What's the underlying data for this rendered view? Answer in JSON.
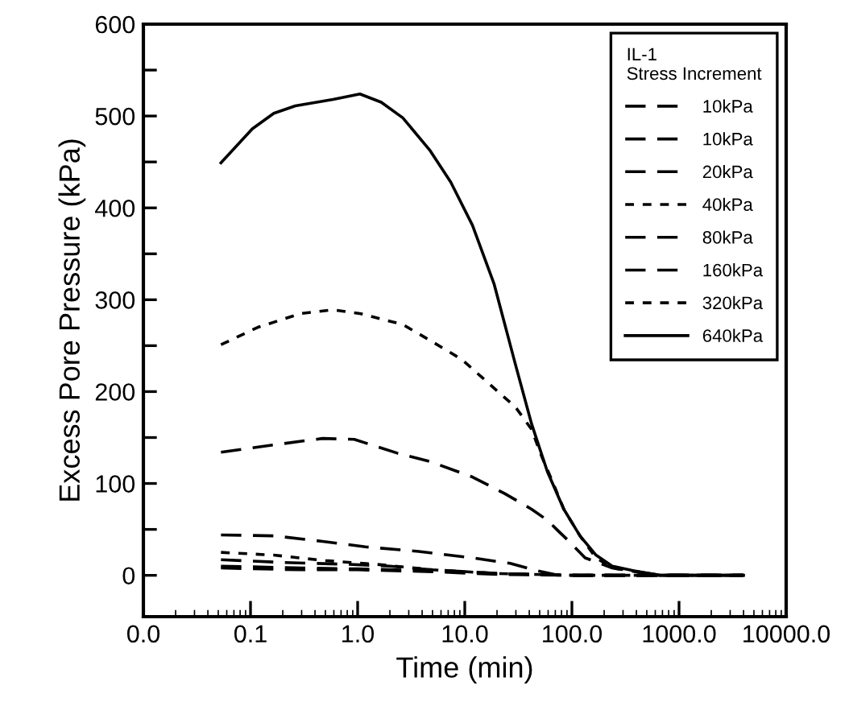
{
  "chart_data": {
    "type": "line",
    "xlabel": "Time (min)",
    "ylabel": "Excess Pore Pressure (kPa)",
    "legend_title": "IL-1\nStress Increment",
    "log": "x",
    "xlim": [
      0.01,
      10000
    ],
    "xticks": [
      {
        "value": 0.01,
        "label": "0.0"
      },
      0.1,
      {
        "value": 1,
        "label": "1.0"
      },
      {
        "value": 10,
        "label": "10.0"
      },
      {
        "value": 100,
        "label": "100.0"
      },
      {
        "value": 1000,
        "label": "1000.0"
      },
      {
        "value": 10000,
        "label": "10000.0"
      }
    ],
    "ylim": [
      -45,
      600
    ],
    "yticks": [
      0,
      {
        "value": 50,
        "label": null
      },
      100,
      {
        "value": 150,
        "label": null
      },
      200,
      {
        "value": 250,
        "label": null
      },
      300,
      {
        "value": 350,
        "label": null
      },
      400,
      {
        "value": 450,
        "label": null
      },
      500,
      {
        "value": 550,
        "label": null
      },
      600
    ],
    "grid": false,
    "legend": "top right",
    "series": [
      {
        "name": "10kPa",
        "color": "#000000",
        "line_style": "dashed",
        "x": [
          0.053,
          0.3,
          1,
          5,
          20,
          100,
          4000
        ],
        "values": [
          10,
          8,
          7,
          5,
          2,
          0,
          0
        ]
      },
      {
        "name": "10kPa",
        "color": "#000000",
        "line_style": "dashed",
        "x": [
          0.053,
          0.3,
          1,
          5,
          20,
          100,
          4000
        ],
        "values": [
          8,
          6,
          6,
          4,
          1,
          0,
          0
        ]
      },
      {
        "name": "20kPa",
        "color": "#000000",
        "line_style": "dashed",
        "x": [
          0.053,
          0.2,
          0.8,
          2,
          5,
          20,
          100,
          4000
        ],
        "values": [
          17,
          14,
          12,
          10,
          6,
          2,
          0,
          0
        ]
      },
      {
        "name": "40kPa",
        "color": "#000000",
        "line_style": "dotted",
        "x": [
          0.053,
          0.165,
          0.5,
          1.5,
          5,
          20,
          100,
          4000
        ],
        "values": [
          25,
          22,
          16,
          12,
          6,
          2,
          0,
          0
        ]
      },
      {
        "name": "80kPa",
        "color": "#000000",
        "line_style": "dashed",
        "x": [
          0.053,
          0.165,
          0.47,
          1.18,
          3.73,
          11.8,
          26.5,
          47,
          75,
          4000
        ],
        "values": [
          44,
          43,
          37,
          31,
          26,
          19,
          13,
          5,
          0,
          0
        ]
      },
      {
        "name": "160kPa",
        "color": "#000000",
        "line_style": "dashed",
        "x": [
          0.053,
          0.165,
          0.47,
          0.93,
          2.35,
          4.7,
          11.8,
          23.6,
          42,
          59,
          75,
          94,
          133,
          238,
          670,
          4000
        ],
        "values": [
          134,
          142,
          149,
          148,
          133,
          124,
          107,
          89,
          72,
          60,
          48,
          37,
          19,
          8,
          0,
          0
        ]
      },
      {
        "name": "320kPa",
        "color": "#000000",
        "line_style": "dotted",
        "x": [
          0.053,
          0.117,
          0.295,
          0.59,
          1.05,
          2.64,
          4.7,
          9.4,
          16.7,
          29.8,
          42,
          52,
          66.5,
          84,
          119,
          168,
          238,
          670,
          4000
        ],
        "values": [
          251,
          270,
          285,
          289,
          285,
          273,
          256,
          235,
          209,
          183,
          159,
          130,
          101,
          72,
          43,
          19,
          8,
          0,
          0
        ]
      },
      {
        "name": "640kPa",
        "color": "#000000",
        "line_style": "solid",
        "x": [
          0.053,
          0.104,
          0.165,
          0.262,
          0.59,
          1.05,
          1.66,
          2.64,
          4.7,
          7.4,
          11.8,
          18.8,
          29.8,
          42,
          59,
          84,
          119,
          168,
          238,
          378,
          670,
          4000
        ],
        "values": [
          449,
          486,
          503,
          511,
          518,
          524,
          515,
          498,
          463,
          428,
          381,
          317,
          229,
          165,
          113,
          72,
          43,
          22,
          10,
          5,
          0,
          0
        ]
      }
    ]
  }
}
